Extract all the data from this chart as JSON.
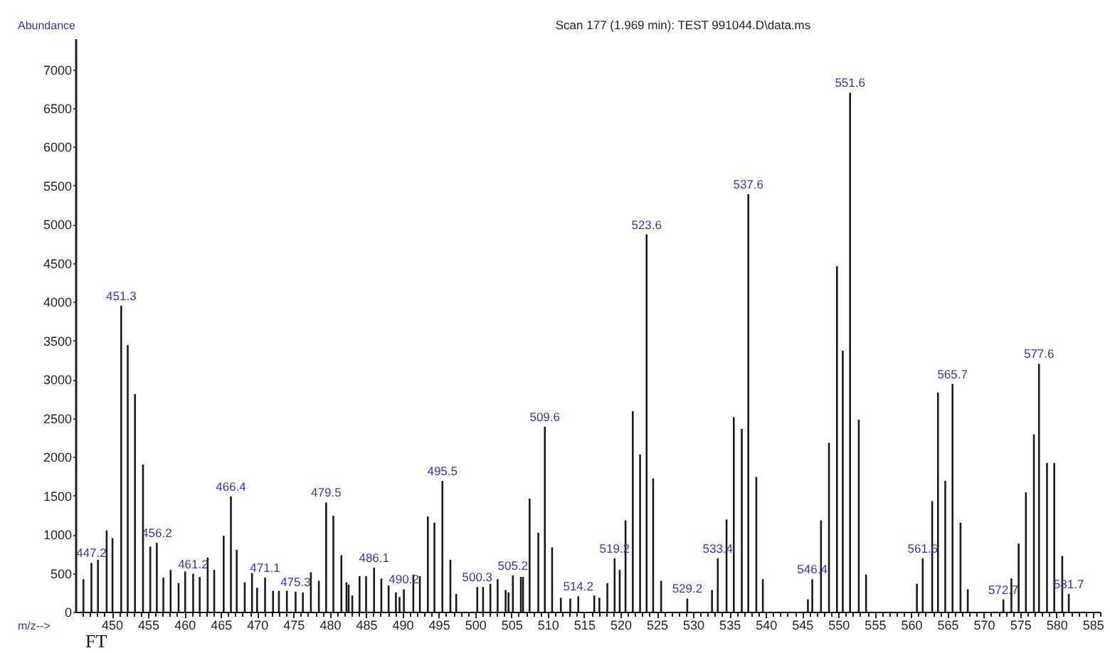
{
  "chart_data": {
    "type": "bar",
    "title": "Scan 177 (1.969 min): TEST 991044.D\\data.ms",
    "xlabel": "m/z-->",
    "ylabel": "Abundance",
    "color": "#1a1a1a",
    "x": [
      446.1,
      447.2,
      448.1,
      449.3,
      450.1,
      451.3,
      452.2,
      453.2,
      454.3,
      455.3,
      456.2,
      457.1,
      458.1,
      459.2,
      460.1,
      461.2,
      462.1,
      463.2,
      464.1,
      465.4,
      466.4,
      467.2,
      468.3,
      469.3,
      470.0,
      471.1,
      472.2,
      473.0,
      474.1,
      475.3,
      476.3,
      477.4,
      478.5,
      479.5,
      480.5,
      481.6,
      482.3,
      482.6,
      483.1,
      484.1,
      485.0,
      486.1,
      487.1,
      488.1,
      489.1,
      489.6,
      490.2,
      491.5,
      492.4,
      493.5,
      494.4,
      495.5,
      496.6,
      497.4,
      500.3,
      501.1,
      502.1,
      503.1,
      504.2,
      504.6,
      505.2,
      506.3,
      506.6,
      507.5,
      508.7,
      509.6,
      510.6,
      511.8,
      513.1,
      514.2,
      516.4,
      517.1,
      518.2,
      519.2,
      519.9,
      520.7,
      521.7,
      522.7,
      523.6,
      524.5,
      525.6,
      529.2,
      532.6,
      533.4,
      534.6,
      535.6,
      536.7,
      537.6,
      538.7,
      539.6,
      545.8,
      546.4,
      547.6,
      548.7,
      549.8,
      550.6,
      551.6,
      552.8,
      553.8,
      560.8,
      561.6,
      562.9,
      563.7,
      564.7,
      565.7,
      566.8,
      567.8,
      572.7,
      573.8,
      574.8,
      575.8,
      576.9,
      577.6,
      578.7,
      579.7,
      580.8,
      581.7
    ],
    "values": [
      420,
      630,
      670,
      1050,
      950,
      3950,
      3440,
      2810,
      1900,
      840,
      890,
      440,
      540,
      370,
      520,
      490,
      450,
      700,
      540,
      980,
      1490,
      800,
      380,
      500,
      310,
      440,
      270,
      270,
      270,
      260,
      250,
      510,
      400,
      1410,
      1240,
      730,
      380,
      350,
      210,
      460,
      460,
      570,
      430,
      340,
      250,
      190,
      290,
      480,
      460,
      1230,
      1150,
      1690,
      670,
      230,
      320,
      320,
      360,
      420,
      280,
      250,
      470,
      450,
      450,
      1460,
      1020,
      2390,
      830,
      180,
      170,
      200,
      210,
      180,
      370,
      690,
      540,
      1180,
      2590,
      2030,
      4870,
      1720,
      400,
      170,
      280,
      690,
      1190,
      2510,
      2360,
      5390,
      1740,
      420,
      160,
      420,
      1180,
      2180,
      4460,
      3370,
      6700,
      2480,
      480,
      360,
      690,
      1430,
      2830,
      1690,
      2940,
      1150,
      290,
      160,
      430,
      880,
      1540,
      2290,
      3200,
      1920,
      1920,
      720,
      230
    ],
    "xlim": [
      445,
      586
    ],
    "ylim": [
      0,
      7400
    ],
    "xticks": [
      {
        "value": 446,
        "label": null
      },
      {
        "value": 447,
        "label": null
      },
      {
        "value": 448,
        "label": null
      },
      {
        "value": 449,
        "label": null
      },
      450,
      {
        "value": 451,
        "label": null
      },
      {
        "value": 452,
        "label": null
      },
      {
        "value": 453,
        "label": null
      },
      {
        "value": 454,
        "label": null
      },
      455,
      {
        "value": 456,
        "label": null
      },
      {
        "value": 457,
        "label": null
      },
      {
        "value": 458,
        "label": null
      },
      {
        "value": 459,
        "label": null
      },
      460,
      {
        "value": 461,
        "label": null
      },
      {
        "value": 462,
        "label": null
      },
      {
        "value": 463,
        "label": null
      },
      {
        "value": 464,
        "label": null
      },
      465,
      {
        "value": 466,
        "label": null
      },
      {
        "value": 467,
        "label": null
      },
      {
        "value": 468,
        "label": null
      },
      {
        "value": 469,
        "label": null
      },
      470,
      {
        "value": 471,
        "label": null
      },
      {
        "value": 472,
        "label": null
      },
      {
        "value": 473,
        "label": null
      },
      {
        "value": 474,
        "label": null
      },
      475,
      {
        "value": 476,
        "label": null
      },
      {
        "value": 477,
        "label": null
      },
      {
        "value": 478,
        "label": null
      },
      {
        "value": 479,
        "label": null
      },
      480,
      {
        "value": 481,
        "label": null
      },
      {
        "value": 482,
        "label": null
      },
      {
        "value": 483,
        "label": null
      },
      {
        "value": 484,
        "label": null
      },
      485,
      {
        "value": 486,
        "label": null
      },
      {
        "value": 487,
        "label": null
      },
      {
        "value": 488,
        "label": null
      },
      {
        "value": 489,
        "label": null
      },
      490,
      {
        "value": 491,
        "label": null
      },
      {
        "value": 492,
        "label": null
      },
      {
        "value": 493,
        "label": null
      },
      {
        "value": 494,
        "label": null
      },
      495,
      {
        "value": 496,
        "label": null
      },
      {
        "value": 497,
        "label": null
      },
      {
        "value": 498,
        "label": null
      },
      {
        "value": 499,
        "label": null
      },
      500,
      {
        "value": 501,
        "label": null
      },
      {
        "value": 502,
        "label": null
      },
      {
        "value": 503,
        "label": null
      },
      {
        "value": 504,
        "label": null
      },
      505,
      {
        "value": 506,
        "label": null
      },
      {
        "value": 507,
        "label": null
      },
      {
        "value": 508,
        "label": null
      },
      {
        "value": 509,
        "label": null
      },
      510,
      {
        "value": 511,
        "label": null
      },
      {
        "value": 512,
        "label": null
      },
      {
        "value": 513,
        "label": null
      },
      {
        "value": 514,
        "label": null
      },
      515,
      {
        "value": 516,
        "label": null
      },
      {
        "value": 517,
        "label": null
      },
      {
        "value": 518,
        "label": null
      },
      {
        "value": 519,
        "label": null
      },
      520,
      {
        "value": 521,
        "label": null
      },
      {
        "value": 522,
        "label": null
      },
      {
        "value": 523,
        "label": null
      },
      {
        "value": 524,
        "label": null
      },
      525,
      {
        "value": 526,
        "label": null
      },
      {
        "value": 527,
        "label": null
      },
      {
        "value": 528,
        "label": null
      },
      {
        "value": 529,
        "label": null
      },
      530,
      {
        "value": 531,
        "label": null
      },
      {
        "value": 532,
        "label": null
      },
      {
        "value": 533,
        "label": null
      },
      {
        "value": 534,
        "label": null
      },
      535,
      {
        "value": 536,
        "label": null
      },
      {
        "value": 537,
        "label": null
      },
      {
        "value": 538,
        "label": null
      },
      {
        "value": 539,
        "label": null
      },
      540,
      {
        "value": 541,
        "label": null
      },
      {
        "value": 542,
        "label": null
      },
      {
        "value": 543,
        "label": null
      },
      {
        "value": 544,
        "label": null
      },
      545,
      {
        "value": 546,
        "label": null
      },
      {
        "value": 547,
        "label": null
      },
      {
        "value": 548,
        "label": null
      },
      {
        "value": 549,
        "label": null
      },
      550,
      {
        "value": 551,
        "label": null
      },
      {
        "value": 552,
        "label": null
      },
      {
        "value": 553,
        "label": null
      },
      {
        "value": 554,
        "label": null
      },
      555,
      {
        "value": 556,
        "label": null
      },
      {
        "value": 557,
        "label": null
      },
      {
        "value": 558,
        "label": null
      },
      {
        "value": 559,
        "label": null
      },
      560,
      {
        "value": 561,
        "label": null
      },
      {
        "value": 562,
        "label": null
      },
      {
        "value": 563,
        "label": null
      },
      {
        "value": 564,
        "label": null
      },
      565,
      {
        "value": 566,
        "label": null
      },
      {
        "value": 567,
        "label": null
      },
      {
        "value": 568,
        "label": null
      },
      {
        "value": 569,
        "label": null
      },
      570,
      {
        "value": 571,
        "label": null
      },
      {
        "value": 572,
        "label": null
      },
      {
        "value": 573,
        "label": null
      },
      {
        "value": 574,
        "label": null
      },
      575,
      {
        "value": 576,
        "label": null
      },
      {
        "value": 577,
        "label": null
      },
      {
        "value": 578,
        "label": null
      },
      {
        "value": 579,
        "label": null
      },
      580,
      {
        "value": 581,
        "label": null
      },
      {
        "value": 582,
        "label": null
      },
      {
        "value": 583,
        "label": null
      },
      {
        "value": 584,
        "label": null
      },
      585,
      {
        "value": 586,
        "label": null
      }
    ],
    "yticks": [
      0,
      500,
      1000,
      1500,
      2000,
      2500,
      3000,
      3500,
      4000,
      4500,
      5000,
      5500,
      6000,
      6500,
      7000
    ],
    "annotations": [
      {
        "text": "447.2",
        "x": 447.2,
        "y": 630
      },
      {
        "text": "451.3",
        "x": 451.3,
        "y": 3950
      },
      {
        "text": "456.2",
        "x": 456.2,
        "y": 890
      },
      {
        "text": "461.2",
        "x": 461.2,
        "y": 490
      },
      {
        "text": "466.4",
        "x": 466.4,
        "y": 1490
      },
      {
        "text": "471.1",
        "x": 471.1,
        "y": 440
      },
      {
        "text": "475.3",
        "x": 475.3,
        "y": 260
      },
      {
        "text": "479.5",
        "x": 479.5,
        "y": 1410
      },
      {
        "text": "486.1",
        "x": 486.1,
        "y": 570
      },
      {
        "text": "490.2",
        "x": 490.2,
        "y": 290
      },
      {
        "text": "495.5",
        "x": 495.5,
        "y": 1690
      },
      {
        "text": "500.3",
        "x": 500.3,
        "y": 320
      },
      {
        "text": "505.2",
        "x": 505.2,
        "y": 470
      },
      {
        "text": "509.6",
        "x": 509.6,
        "y": 2390
      },
      {
        "text": "514.2",
        "x": 514.2,
        "y": 200
      },
      {
        "text": "519.2",
        "x": 519.2,
        "y": 690
      },
      {
        "text": "523.6",
        "x": 523.6,
        "y": 4870
      },
      {
        "text": "529.2",
        "x": 529.2,
        "y": 170
      },
      {
        "text": "533.4",
        "x": 533.4,
        "y": 690
      },
      {
        "text": "537.6",
        "x": 537.6,
        "y": 5390
      },
      {
        "text": "546.4",
        "x": 546.4,
        "y": 420
      },
      {
        "text": "551.6",
        "x": 551.6,
        "y": 6700
      },
      {
        "text": "561.6",
        "x": 561.6,
        "y": 690
      },
      {
        "text": "565.7",
        "x": 565.7,
        "y": 2940
      },
      {
        "text": "572.7",
        "x": 572.7,
        "y": 160
      },
      {
        "text": "577.6",
        "x": 577.6,
        "y": 3200
      },
      {
        "text": "581.7",
        "x": 581.7,
        "y": 230
      },
      "FT"
    ]
  }
}
